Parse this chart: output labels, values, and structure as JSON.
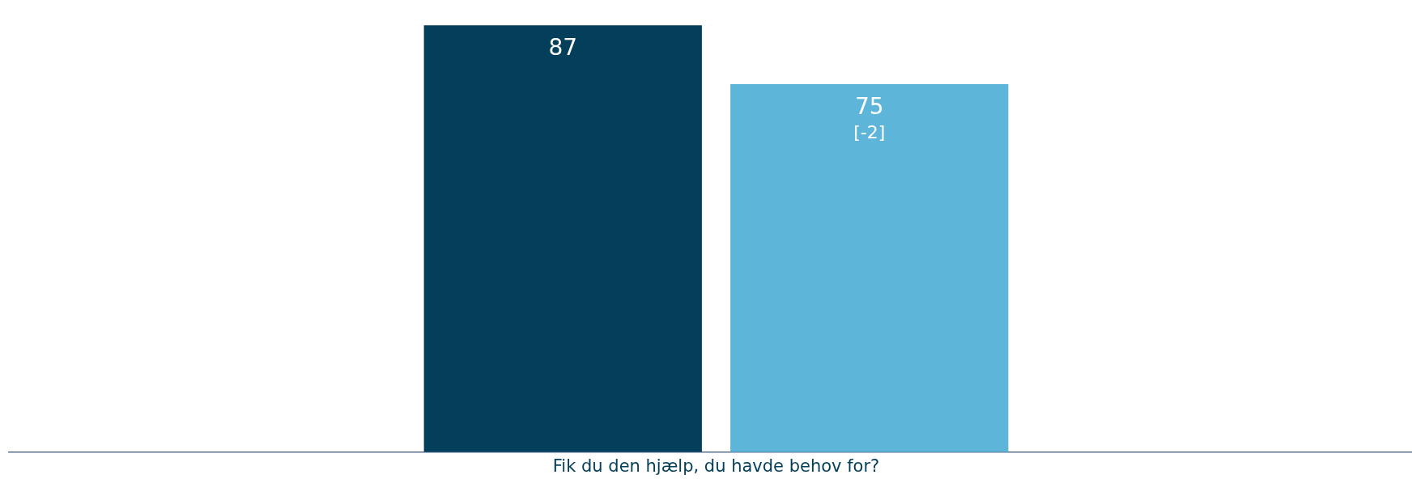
{
  "chart_data": {
    "type": "bar",
    "xlabel": "Fik du den hjælp, du havde behov for?",
    "categories": [
      null,
      null
    ],
    "values": [
      87,
      75
    ],
    "colors": [
      "#033f5a",
      "#5db5da"
    ],
    "value_labels": [
      "87",
      "75\n[-2]"
    ],
    "grid": false,
    "legend": false,
    "tick_labels": false
  }
}
